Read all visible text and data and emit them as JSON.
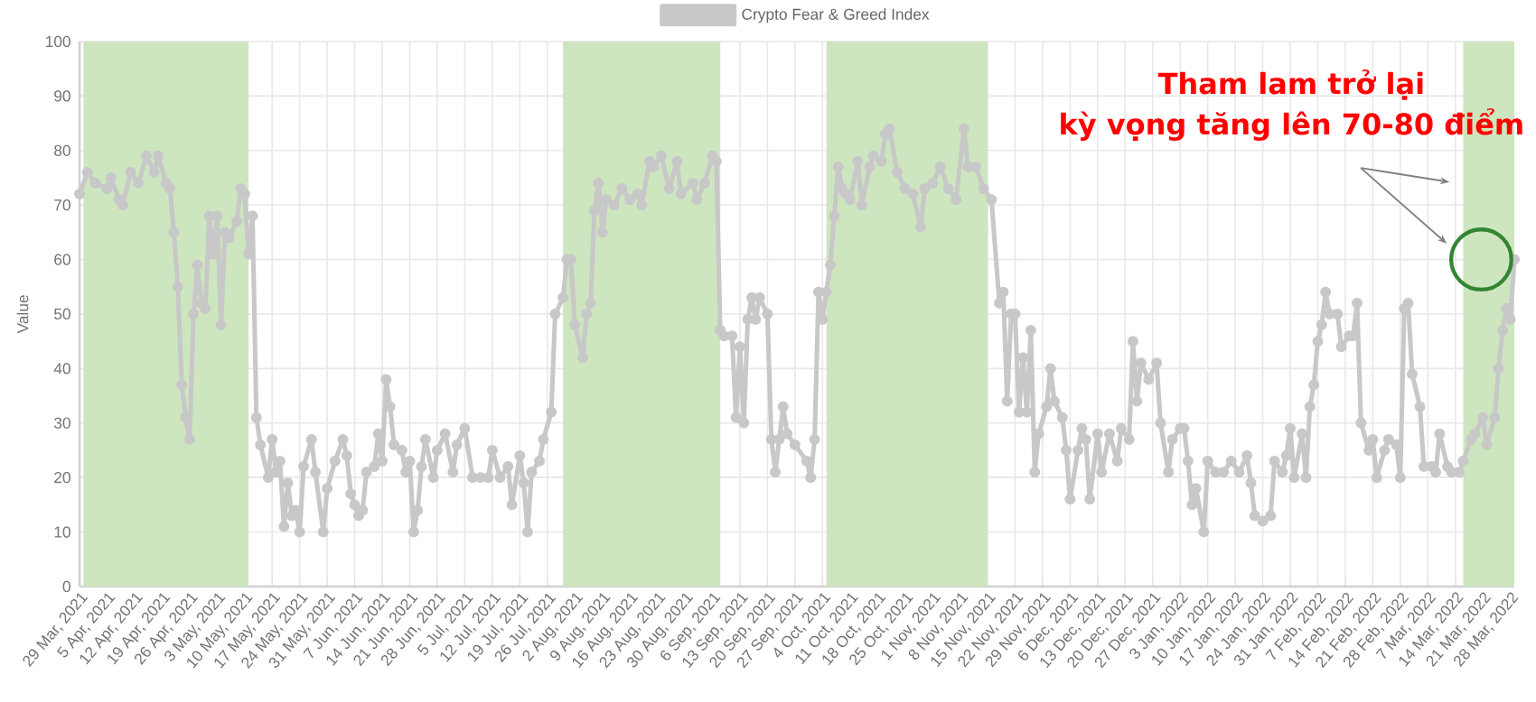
{
  "chart_data": {
    "type": "line",
    "ylabel": "Value",
    "legend": "top",
    "grid": true,
    "marker": "circle",
    "line_style": "solid",
    "x": [
      "2021-03-29",
      "2021-03-31",
      "2021-04-02",
      "2021-04-05",
      "2021-04-06",
      "2021-04-08",
      "2021-04-09",
      "2021-04-11",
      "2021-04-13",
      "2021-04-15",
      "2021-04-17",
      "2021-04-18",
      "2021-04-20",
      "2021-04-21",
      "2021-04-22",
      "2021-04-23",
      "2021-04-24",
      "2021-04-25",
      "2021-04-26",
      "2021-04-27",
      "2021-04-28",
      "2021-04-29",
      "2021-04-30",
      "2021-05-01",
      "2021-05-02",
      "2021-05-03",
      "2021-05-04",
      "2021-05-05",
      "2021-05-06",
      "2021-05-08",
      "2021-05-09",
      "2021-05-10",
      "2021-05-11",
      "2021-05-12",
      "2021-05-13",
      "2021-05-14",
      "2021-05-16",
      "2021-05-17",
      "2021-05-18",
      "2021-05-19",
      "2021-05-20",
      "2021-05-21",
      "2021-05-22",
      "2021-05-23",
      "2021-05-24",
      "2021-05-25",
      "2021-05-27",
      "2021-05-28",
      "2021-05-30",
      "2021-05-31",
      "2021-06-02",
      "2021-06-04",
      "2021-06-05",
      "2021-06-06",
      "2021-06-07",
      "2021-06-08",
      "2021-06-09",
      "2021-06-10",
      "2021-06-12",
      "2021-06-13",
      "2021-06-14",
      "2021-06-15",
      "2021-06-16",
      "2021-06-17",
      "2021-06-19",
      "2021-06-20",
      "2021-06-21",
      "2021-06-22",
      "2021-06-23",
      "2021-06-24",
      "2021-06-25",
      "2021-06-27",
      "2021-06-28",
      "2021-06-30",
      "2021-07-02",
      "2021-07-03",
      "2021-07-05",
      "2021-07-07",
      "2021-07-09",
      "2021-07-11",
      "2021-07-12",
      "2021-07-14",
      "2021-07-16",
      "2021-07-17",
      "2021-07-19",
      "2021-07-20",
      "2021-07-21",
      "2021-07-22",
      "2021-07-24",
      "2021-07-25",
      "2021-07-27",
      "2021-07-28",
      "2021-07-30",
      "2021-07-31",
      "2021-08-01",
      "2021-08-02",
      "2021-08-04",
      "2021-08-05",
      "2021-08-06",
      "2021-08-07",
      "2021-08-08",
      "2021-08-09",
      "2021-08-10",
      "2021-08-12",
      "2021-08-14",
      "2021-08-16",
      "2021-08-18",
      "2021-08-19",
      "2021-08-21",
      "2021-08-22",
      "2021-08-24",
      "2021-08-26",
      "2021-08-28",
      "2021-08-29",
      "2021-09-01",
      "2021-09-02",
      "2021-09-04",
      "2021-09-06",
      "2021-09-07",
      "2021-09-08",
      "2021-09-09",
      "2021-09-11",
      "2021-09-12",
      "2021-09-13",
      "2021-09-14",
      "2021-09-15",
      "2021-09-16",
      "2021-09-17",
      "2021-09-18",
      "2021-09-20",
      "2021-09-21",
      "2021-09-22",
      "2021-09-23",
      "2021-09-24",
      "2021-09-25",
      "2021-09-27",
      "2021-09-30",
      "2021-10-01",
      "2021-10-02",
      "2021-10-03",
      "2021-10-04",
      "2021-10-05",
      "2021-10-06",
      "2021-10-07",
      "2021-10-08",
      "2021-10-09",
      "2021-10-10",
      "2021-10-11",
      "2021-10-13",
      "2021-10-14",
      "2021-10-16",
      "2021-10-17",
      "2021-10-19",
      "2021-10-20",
      "2021-10-21",
      "2021-10-23",
      "2021-10-25",
      "2021-10-27",
      "2021-10-29",
      "2021-10-30",
      "2021-11-01",
      "2021-11-03",
      "2021-11-05",
      "2021-11-07",
      "2021-11-09",
      "2021-11-10",
      "2021-11-12",
      "2021-11-14",
      "2021-11-16",
      "2021-11-18",
      "2021-11-19",
      "2021-11-20",
      "2021-11-21",
      "2021-11-22",
      "2021-11-23",
      "2021-11-24",
      "2021-11-25",
      "2021-11-26",
      "2021-11-27",
      "2021-11-28",
      "2021-11-30",
      "2021-12-01",
      "2021-12-02",
      "2021-12-04",
      "2021-12-05",
      "2021-12-06",
      "2021-12-08",
      "2021-12-09",
      "2021-12-10",
      "2021-12-11",
      "2021-12-13",
      "2021-12-14",
      "2021-12-16",
      "2021-12-18",
      "2021-12-19",
      "2021-12-21",
      "2021-12-22",
      "2021-12-23",
      "2021-12-24",
      "2021-12-26",
      "2021-12-28",
      "2021-12-29",
      "2021-12-31",
      "2022-01-01",
      "2022-01-03",
      "2022-01-04",
      "2022-01-05",
      "2022-01-06",
      "2022-01-07",
      "2022-01-09",
      "2022-01-10",
      "2022-01-12",
      "2022-01-14",
      "2022-01-16",
      "2022-01-18",
      "2022-01-20",
      "2022-01-21",
      "2022-01-22",
      "2022-01-24",
      "2022-01-26",
      "2022-01-27",
      "2022-01-29",
      "2022-01-30",
      "2022-01-31",
      "2022-02-01",
      "2022-02-03",
      "2022-02-04",
      "2022-02-05",
      "2022-02-06",
      "2022-02-07",
      "2022-02-08",
      "2022-02-09",
      "2022-02-10",
      "2022-02-12",
      "2022-02-13",
      "2022-02-15",
      "2022-02-16",
      "2022-02-17",
      "2022-02-18",
      "2022-02-20",
      "2022-02-21",
      "2022-02-22",
      "2022-02-24",
      "2022-02-25",
      "2022-02-27",
      "2022-02-28",
      "2022-03-01",
      "2022-03-02",
      "2022-03-03",
      "2022-03-05",
      "2022-03-06",
      "2022-03-08",
      "2022-03-09",
      "2022-03-10",
      "2022-03-12",
      "2022-03-13",
      "2022-03-15",
      "2022-03-16",
      "2022-03-18",
      "2022-03-19",
      "2022-03-21",
      "2022-03-22",
      "2022-03-24",
      "2022-03-25",
      "2022-03-26",
      "2022-03-27",
      "2022-03-28",
      "2022-03-29"
    ],
    "series": [
      {
        "name": "Crypto Fear & Greed Index",
        "color": "#c8c8c8",
        "values": [
          72,
          76,
          74,
          73,
          75,
          71,
          70,
          76,
          74,
          79,
          76,
          79,
          74,
          73,
          65,
          55,
          37,
          31,
          27,
          50,
          59,
          52,
          51,
          68,
          61,
          68,
          48,
          65,
          64,
          67,
          73,
          72,
          61,
          68,
          31,
          26,
          20,
          27,
          21,
          23,
          11,
          19,
          13,
          14,
          10,
          22,
          27,
          21,
          10,
          18,
          23,
          27,
          24,
          17,
          15,
          13,
          14,
          21,
          22,
          28,
          23,
          38,
          33,
          26,
          25,
          21,
          23,
          10,
          14,
          22,
          27,
          20,
          25,
          28,
          21,
          26,
          29,
          20,
          20,
          20,
          25,
          20,
          22,
          15,
          24,
          19,
          10,
          21,
          23,
          27,
          32,
          50,
          53,
          60,
          60,
          48,
          42,
          50,
          52,
          69,
          74,
          65,
          71,
          70,
          73,
          71,
          72,
          70,
          78,
          77,
          79,
          73,
          78,
          72,
          74,
          71,
          74,
          79,
          78,
          47,
          46,
          46,
          31,
          44,
          30,
          49,
          53,
          49,
          53,
          50,
          27,
          21,
          27,
          33,
          28,
          26,
          23,
          20,
          27,
          54,
          49,
          54,
          59,
          68,
          77,
          73,
          72,
          71,
          78,
          70,
          77,
          79,
          78,
          83,
          84,
          76,
          73,
          72,
          66,
          73,
          74,
          77,
          73,
          71,
          84,
          77,
          77,
          73,
          71,
          52,
          54,
          34,
          50,
          50,
          32,
          42,
          32,
          47,
          21,
          28,
          33,
          40,
          34,
          31,
          25,
          16,
          25,
          29,
          27,
          16,
          28,
          21,
          28,
          23,
          29,
          27,
          45,
          34,
          41,
          38,
          41,
          30,
          21,
          27,
          29,
          29,
          23,
          15,
          18,
          10,
          23,
          21,
          21,
          23,
          21,
          24,
          19,
          13,
          12,
          13,
          23,
          21,
          24,
          29,
          20,
          28,
          20,
          33,
          37,
          45,
          48,
          54,
          50,
          50,
          44,
          46,
          46,
          52,
          30,
          25,
          27,
          20,
          25,
          27,
          26,
          20,
          51,
          52,
          39,
          33,
          22,
          22,
          21,
          28,
          22,
          21,
          21,
          23,
          27,
          28,
          31,
          26,
          31,
          40,
          47,
          51,
          49,
          60
        ]
      }
    ],
    "xlim": [
      "2021-03-29",
      "2022-03-29"
    ],
    "xticks": [
      {
        "value": "2021-03-29",
        "label": "29 Mar, 2021"
      },
      {
        "value": "2021-04-05",
        "label": "5 Apr, 2021"
      },
      {
        "value": "2021-04-12",
        "label": "12 Apr, 2021"
      },
      {
        "value": "2021-04-19",
        "label": "19 Apr, 2021"
      },
      {
        "value": "2021-04-26",
        "label": "26 Apr, 2021"
      },
      {
        "value": "2021-05-03",
        "label": "3 May, 2021"
      },
      {
        "value": "2021-05-10",
        "label": "10 May, 2021"
      },
      {
        "value": "2021-05-17",
        "label": "17 May, 2021"
      },
      {
        "value": "2021-05-24",
        "label": "24 May, 2021"
      },
      {
        "value": "2021-05-31",
        "label": "31 May, 2021"
      },
      {
        "value": "2021-06-07",
        "label": "7 Jun, 2021"
      },
      {
        "value": "2021-06-14",
        "label": "14 Jun, 2021"
      },
      {
        "value": "2021-06-21",
        "label": "21 Jun, 2021"
      },
      {
        "value": "2021-06-28",
        "label": "28 Jun, 2021"
      },
      {
        "value": "2021-07-05",
        "label": "5 Jul, 2021"
      },
      {
        "value": "2021-07-12",
        "label": "12 Jul, 2021"
      },
      {
        "value": "2021-07-19",
        "label": "19 Jul, 2021"
      },
      {
        "value": "2021-07-26",
        "label": "26 Jul, 2021"
      },
      {
        "value": "2021-08-02",
        "label": "2 Aug, 2021"
      },
      {
        "value": "2021-08-09",
        "label": "9 Aug, 2021"
      },
      {
        "value": "2021-08-16",
        "label": "16 Aug, 2021"
      },
      {
        "value": "2021-08-23",
        "label": "23 Aug, 2021"
      },
      {
        "value": "2021-08-30",
        "label": "30 Aug, 2021"
      },
      {
        "value": "2021-09-06",
        "label": "6 Sep, 2021"
      },
      {
        "value": "2021-09-13",
        "label": "13 Sep, 2021"
      },
      {
        "value": "2021-09-20",
        "label": "20 Sep, 2021"
      },
      {
        "value": "2021-09-27",
        "label": "27 Sep, 2021"
      },
      {
        "value": "2021-10-04",
        "label": "4 Oct, 2021"
      },
      {
        "value": "2021-10-11",
        "label": "11 Oct, 2021"
      },
      {
        "value": "2021-10-18",
        "label": "18 Oct, 2021"
      },
      {
        "value": "2021-10-25",
        "label": "25 Oct, 2021"
      },
      {
        "value": "2021-11-01",
        "label": "1 Nov, 2021"
      },
      {
        "value": "2021-11-08",
        "label": "8 Nov, 2021"
      },
      {
        "value": "2021-11-15",
        "label": "15 Nov, 2021"
      },
      {
        "value": "2021-11-22",
        "label": "22 Nov, 2021"
      },
      {
        "value": "2021-11-29",
        "label": "29 Nov, 2021"
      },
      {
        "value": "2021-12-06",
        "label": "6 Dec, 2021"
      },
      {
        "value": "2021-12-13",
        "label": "13 Dec, 2021"
      },
      {
        "value": "2021-12-20",
        "label": "20 Dec, 2021"
      },
      {
        "value": "2021-12-27",
        "label": "27 Dec, 2021"
      },
      {
        "value": "2022-01-03",
        "label": "3 Jan, 2022"
      },
      {
        "value": "2022-01-10",
        "label": "10 Jan, 2022"
      },
      {
        "value": "2022-01-17",
        "label": "17 Jan, 2022"
      },
      {
        "value": "2022-01-24",
        "label": "24 Jan, 2022"
      },
      {
        "value": "2022-01-31",
        "label": "31 Jan, 2022"
      },
      {
        "value": "2022-02-07",
        "label": "7 Feb, 2022"
      },
      {
        "value": "2022-02-14",
        "label": "14 Feb, 2022"
      },
      {
        "value": "2022-02-21",
        "label": "21 Feb, 2022"
      },
      {
        "value": "2022-02-28",
        "label": "28 Feb, 2022"
      },
      {
        "value": "2022-03-07",
        "label": "7 Mar, 2022"
      },
      {
        "value": "2022-03-14",
        "label": "14 Mar, 2022"
      },
      {
        "value": "2022-03-21",
        "label": "21 Mar, 2022"
      },
      {
        "value": "2022-03-28",
        "label": "28 Mar, 2022"
      }
    ],
    "ylim": [
      0,
      100
    ],
    "yticks": [
      0,
      10,
      20,
      30,
      40,
      50,
      60,
      70,
      80,
      90,
      100
    ],
    "bands": [
      {
        "axis": "x",
        "from": "2021-03-30",
        "to": "2021-05-11",
        "color": "#cde6bf"
      },
      {
        "axis": "x",
        "from": "2021-07-30",
        "to": "2021-09-08",
        "color": "#cde6bf"
      },
      {
        "axis": "x",
        "from": "2021-10-05",
        "to": "2021-11-15",
        "color": "#cde6bf"
      },
      {
        "axis": "x",
        "from": "2022-03-16",
        "to": "2022-03-29",
        "color": "#cde6bf"
      }
    ],
    "annotations": [
      "Tham lam trở lại",
      "kỳ vọng tăng lên 70-80 điểm"
    ]
  }
}
